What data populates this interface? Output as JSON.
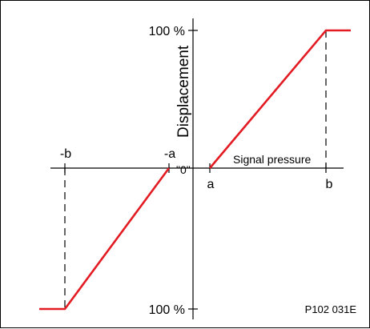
{
  "labels": {
    "y_axis": "Displacement",
    "x_axis": "Signal pressure",
    "top_percent": "100 %",
    "bottom_percent": "100 %",
    "origin": "\"0\"",
    "neg_b": "-b",
    "neg_a": "-a",
    "pos_a": "a",
    "pos_b": "b",
    "figure_code": "P102 031E"
  },
  "colors": {
    "characteristic": "#e31b23",
    "axes": "#000000",
    "guide": "#000000"
  },
  "characteristic": {
    "positive": [
      [
        "a",
        0
      ],
      [
        "b",
        100
      ],
      [
        "beyond b",
        100
      ]
    ],
    "negative": [
      [
        "-a",
        0
      ],
      [
        "-b",
        -100
      ],
      [
        "beyond -b",
        -100
      ]
    ]
  }
}
